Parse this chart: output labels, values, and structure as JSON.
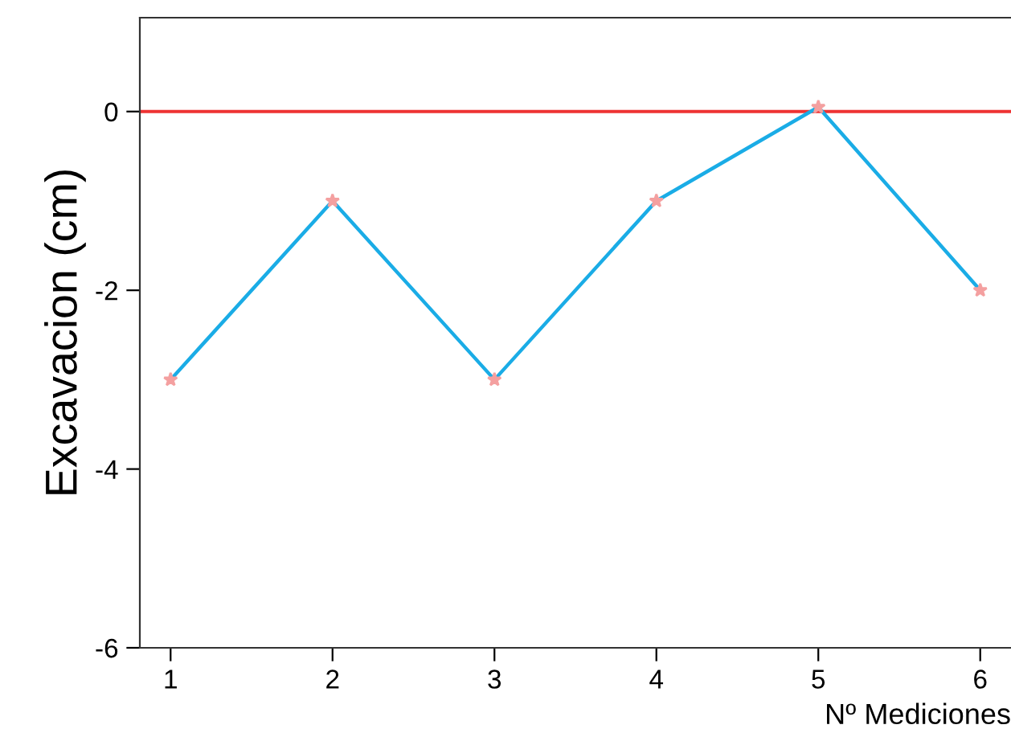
{
  "chart_data": {
    "type": "line",
    "xlabel": "Nº Mediciones",
    "ylabel": "Excavacion (cm)",
    "x": [
      1,
      2,
      3,
      4,
      5,
      6
    ],
    "series": [
      {
        "color": "#1aace6",
        "values": [
          -3,
          -1,
          -3,
          -1,
          0.05,
          -2
        ]
      }
    ],
    "xlim": [
      0.81,
      6.19
    ],
    "xticks": [
      1,
      2,
      3,
      4,
      5,
      6
    ],
    "ylim": [
      -6,
      1.05
    ],
    "yticks": [
      -6,
      -4,
      -2,
      0
    ],
    "ref_lines": [
      {
        "axis": "y",
        "value": 0,
        "color": "#ee3333"
      }
    ],
    "marker": "star",
    "line_style": "solid",
    "grid": false,
    "legend": false
  }
}
